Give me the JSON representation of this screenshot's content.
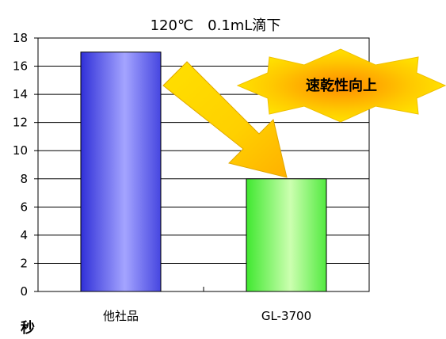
{
  "chart_data": {
    "type": "bar",
    "title": "120℃　0.1mL滴下",
    "categories": [
      "他社品",
      "GL-3700"
    ],
    "values": [
      17,
      8
    ],
    "ylabel": "秒",
    "ylim": [
      0,
      18
    ],
    "yticks": [
      0,
      2,
      4,
      6,
      8,
      10,
      12,
      14,
      16,
      18
    ],
    "grid": true,
    "bar_colors": [
      "#4a4ae6",
      "#6ef05a"
    ],
    "annotation": "速乾性向上"
  }
}
